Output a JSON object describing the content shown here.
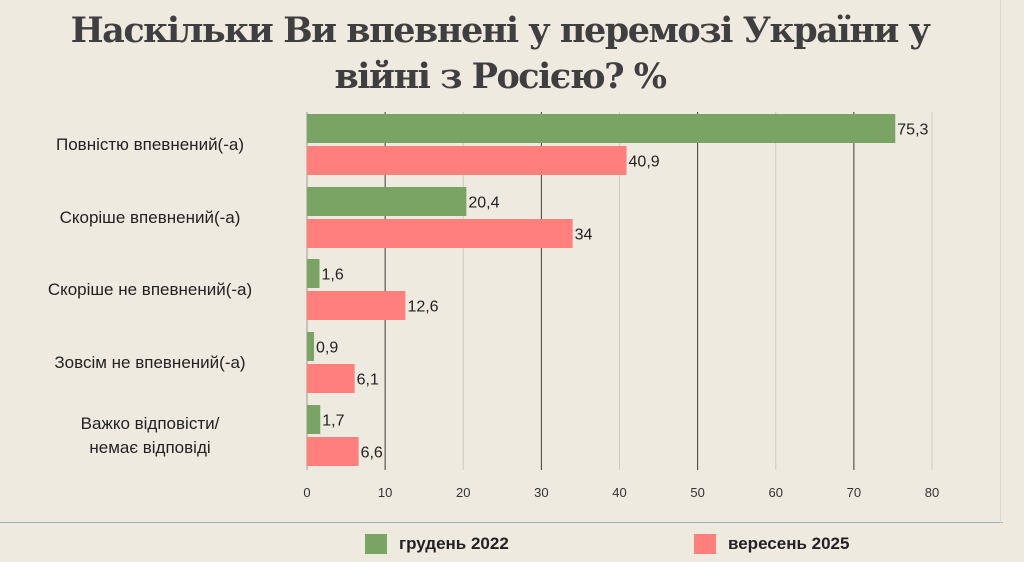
{
  "chart_data": {
    "type": "bar",
    "orientation": "horizontal",
    "title": "Наскільки Ви впевнені у перемозі України у війні з Росією? %",
    "categories": [
      "Повністю впевнений(-а)",
      "Скоріше впевнений(-а)",
      "Скоріше не впевнений(-а)",
      "Зовсім не впевнений(-а)",
      "Важко відповісти/ немає відповіді"
    ],
    "category_lines": [
      [
        "Повністю впевнений(-а)"
      ],
      [
        "Скоріше впевнений(-а)"
      ],
      [
        "Скоріше не впевнений(-а)"
      ],
      [
        "Зовсім не впевнений(-а)"
      ],
      [
        "Важко відповісти/",
        "немає відповіді"
      ]
    ],
    "series": [
      {
        "name": "грудень 2022",
        "color": "#7aa463",
        "values": [
          75.3,
          20.4,
          1.6,
          0.9,
          1.7
        ],
        "labels": [
          "75,3",
          "20,4",
          "1,6",
          "0,9",
          "1,7"
        ]
      },
      {
        "name": "вересень 2025",
        "color": "#fe7f7b",
        "values": [
          40.9,
          34,
          12.6,
          6.1,
          6.6
        ],
        "labels": [
          "40,9",
          "34",
          "12,6",
          "6,1",
          "6,6"
        ]
      }
    ],
    "xlim": [
      0,
      80
    ],
    "xticks": [
      0,
      10,
      20,
      30,
      40,
      50,
      60,
      70,
      80
    ],
    "grid": "vertical",
    "legend_position": "bottom"
  }
}
